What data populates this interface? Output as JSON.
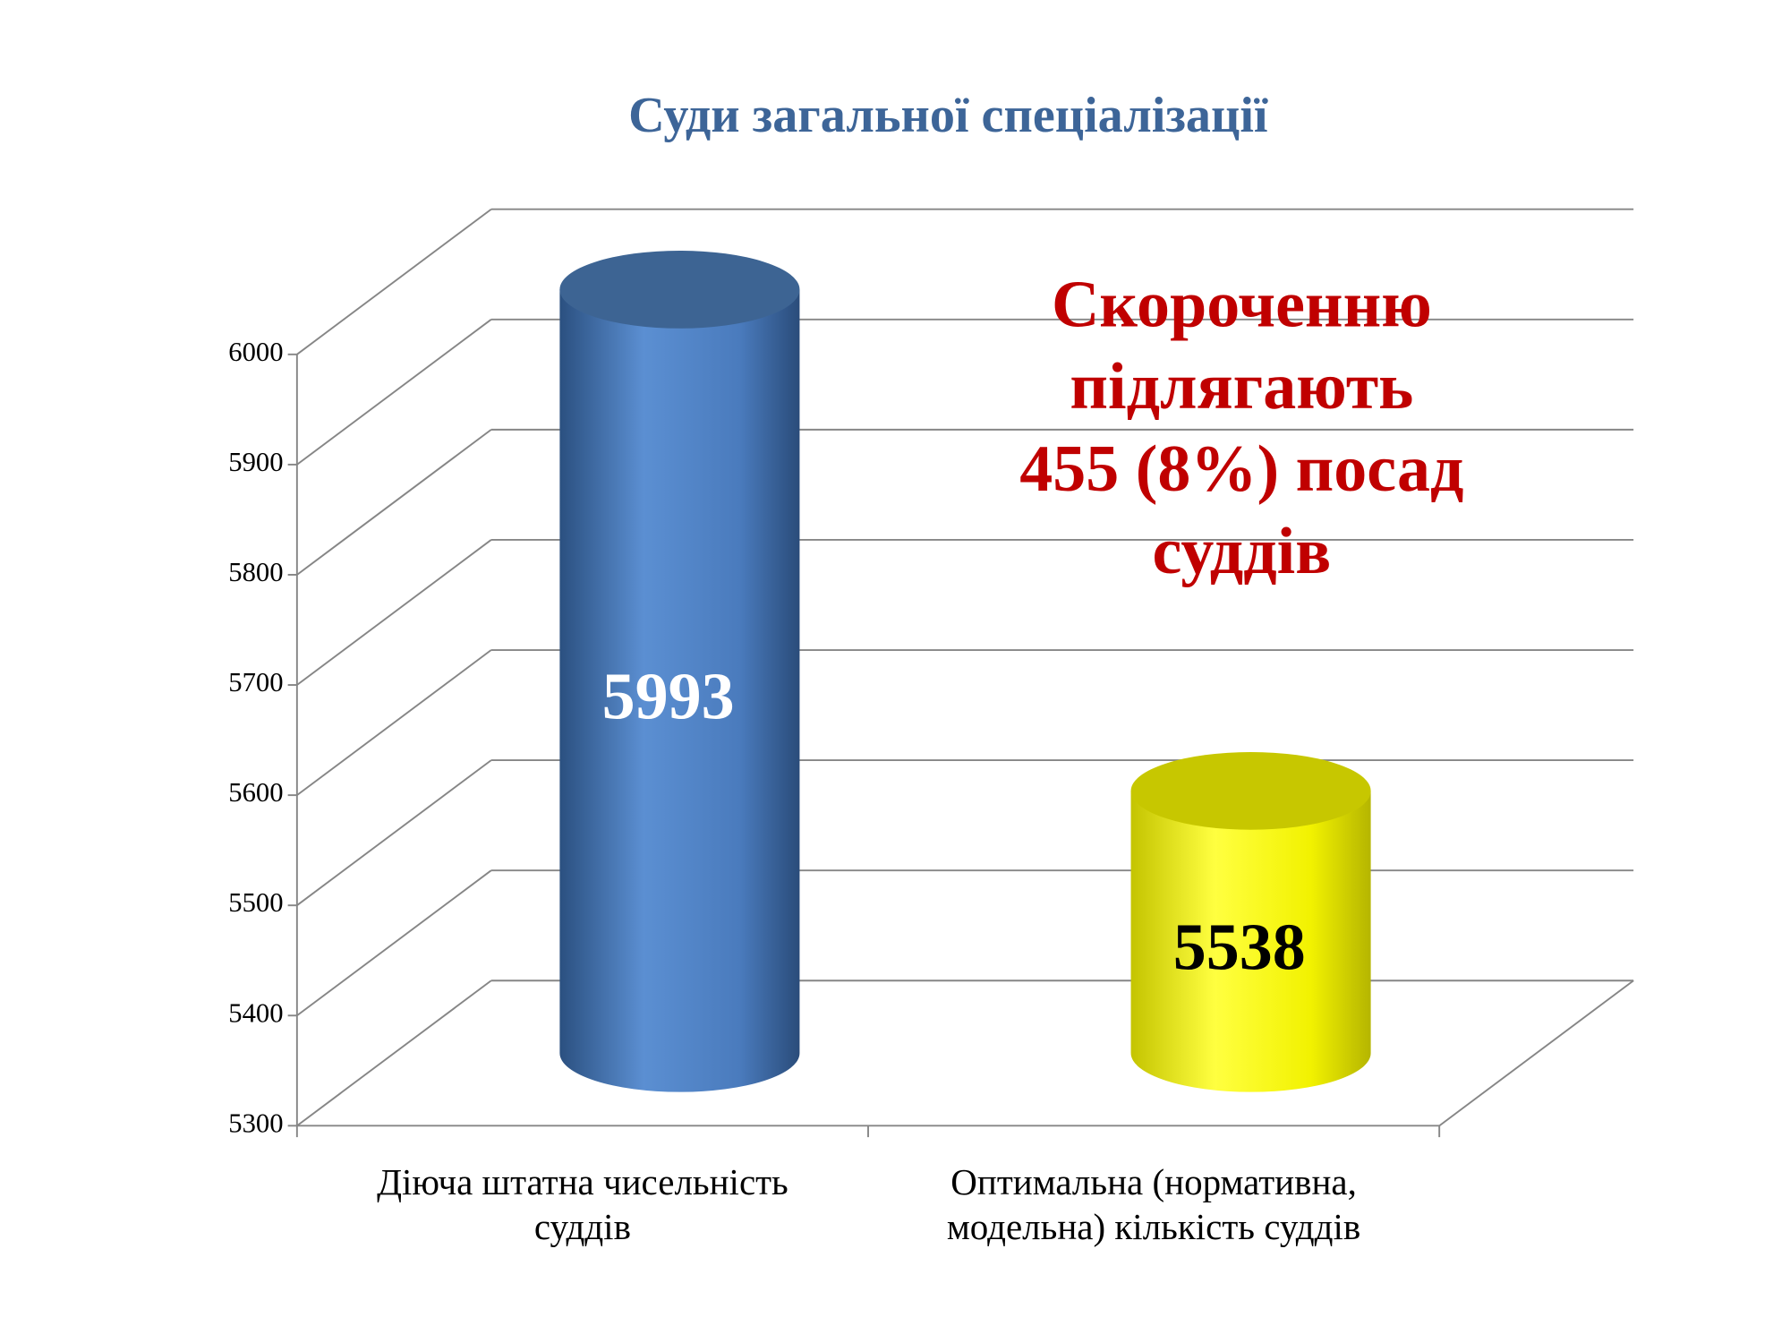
{
  "chart_data": {
    "type": "bar",
    "title": "Суди загальної спеціалізації",
    "annotation": [
      "Скороченню",
      "підлягають",
      "455 (8%) посад",
      "суддів"
    ],
    "categories": [
      "Діюча штатна чисельність суддів",
      "Оптимальна (нормативна, модельна) кількість суддів"
    ],
    "values": [
      5993,
      5538
    ],
    "colors": [
      "#4f81bd",
      "#ffff00"
    ],
    "value_label_colors": [
      "#ffffff",
      "#000000"
    ],
    "ylim": [
      5300,
      6000
    ],
    "yticks": [
      5300,
      5400,
      5500,
      5600,
      5700,
      5800,
      5900,
      6000
    ],
    "grid": true
  }
}
